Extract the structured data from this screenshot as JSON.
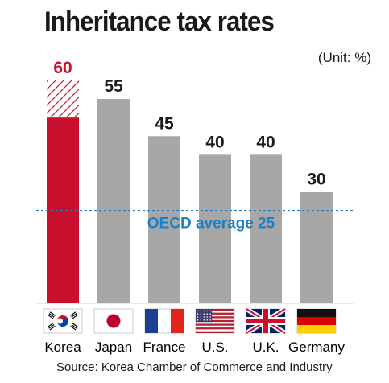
{
  "header": {
    "title": "Inheritance tax rates",
    "unit": "(Unit: %)"
  },
  "footer": {
    "source": "Source: Korea Chamber of Commerce and Industry"
  },
  "chart_data": {
    "type": "bar",
    "title": "Inheritance tax rates",
    "ylabel": "",
    "xlabel": "",
    "ylim": [
      0,
      60
    ],
    "categories": [
      "Korea",
      "Japan",
      "France",
      "U.S.",
      "U.K.",
      "Germany"
    ],
    "values": [
      60,
      55,
      45,
      40,
      40,
      30
    ],
    "value_labels": [
      "60",
      "55",
      "45",
      "40",
      "40",
      "30"
    ],
    "highlight": {
      "category": "Korea",
      "solid_value": 50,
      "color": "#c8102e",
      "hatched_color": "#c8102e"
    },
    "bar_color": "#a7a7a7",
    "reference_line": {
      "value": 25,
      "label": "OECD average 25",
      "color": "#1f7fc4"
    },
    "flags": [
      "south-korea-flag-icon",
      "japan-flag-icon",
      "france-flag-icon",
      "usa-flag-icon",
      "uk-flag-icon",
      "germany-flag-icon"
    ],
    "grid": false
  }
}
